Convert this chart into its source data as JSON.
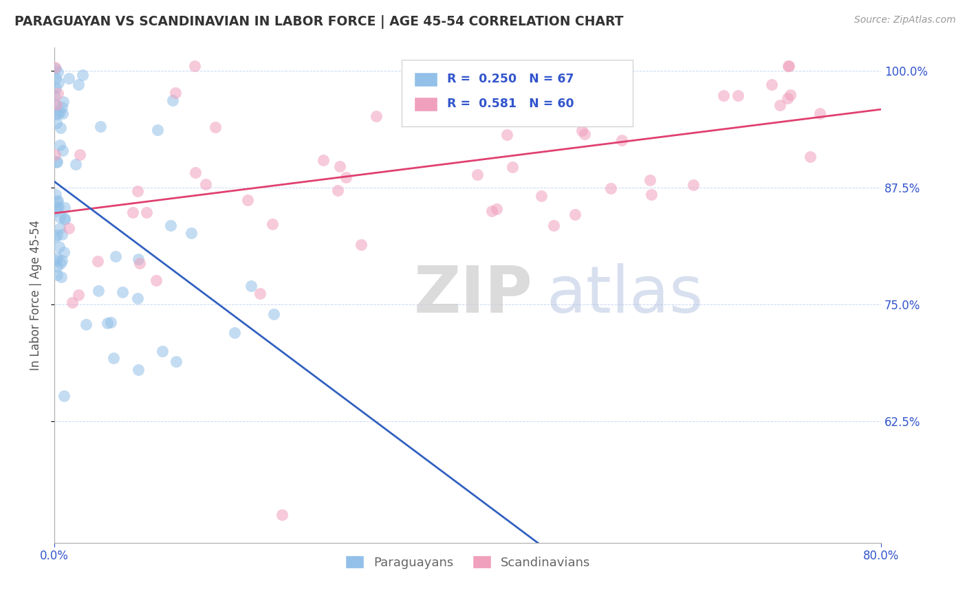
{
  "title": "PARAGUAYAN VS SCANDINAVIAN IN LABOR FORCE | AGE 45-54 CORRELATION CHART",
  "source": "Source: ZipAtlas.com",
  "ylabel": "In Labor Force | Age 45-54",
  "x_min": 0.0,
  "x_max": 0.8,
  "y_min": 0.495,
  "y_max": 1.025,
  "paraguayan_R": 0.25,
  "paraguayan_N": 67,
  "scandinavian_R": 0.581,
  "scandinavian_N": 60,
  "blue_color": "#92C0E8",
  "pink_color": "#F0A0BC",
  "blue_line_color": "#3060C0",
  "pink_line_color": "#E04070",
  "legend_text_color": "#3355CC",
  "background_color": "#FFFFFF",
  "watermark_zip": "ZIP",
  "watermark_atlas": "atlas",
  "yticks": [
    0.625,
    0.75,
    0.875,
    1.0
  ],
  "xticks": [
    0.0,
    0.8
  ]
}
